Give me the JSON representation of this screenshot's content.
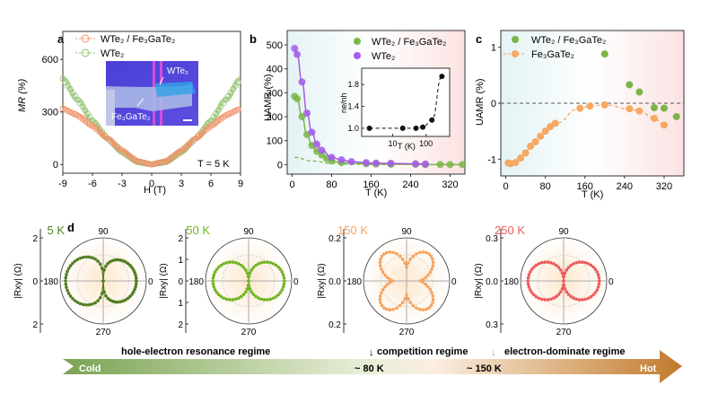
{
  "chart_data": [
    {
      "panel": "a",
      "type": "line",
      "xlabel": "H (T)",
      "ylabel": "MR (%)",
      "xlim": [
        -9,
        9
      ],
      "ylim": [
        -50,
        760
      ],
      "xticks": [
        -9,
        -6,
        -3,
        0,
        3,
        6,
        9
      ],
      "yticks": [
        0,
        300,
        600
      ],
      "annotation": "T = 5 K",
      "inset_labels": [
        "WTe2",
        "Fe3GaTe2"
      ],
      "series": [
        {
          "name": "WTe2 / Fe3GaTe2",
          "color": "#f29068",
          "marker": "open-circle",
          "x": [
            -9,
            -7.5,
            -6,
            -4.5,
            -3,
            -1.5,
            0,
            1.5,
            3,
            4.5,
            6,
            7.5,
            9
          ],
          "y": [
            320,
            280,
            220,
            150,
            80,
            20,
            0,
            20,
            80,
            150,
            220,
            280,
            320
          ]
        },
        {
          "name": "WTe2",
          "color": "#8fc06a",
          "marker": "open-circle",
          "x": [
            -9,
            -7.5,
            -6,
            -4.5,
            -3,
            -1.5,
            0,
            1.5,
            3,
            4.5,
            6,
            7.5,
            9
          ],
          "y": [
            490,
            370,
            250,
            150,
            70,
            15,
            0,
            15,
            70,
            150,
            250,
            370,
            490
          ]
        }
      ]
    },
    {
      "panel": "b",
      "type": "scatter",
      "xlabel": "T (K)",
      "ylabel": "UAMR (%)",
      "xlim": [
        -10,
        350
      ],
      "ylim": [
        -40,
        560
      ],
      "xticks": [
        0,
        80,
        160,
        240,
        320
      ],
      "yticks": [
        0,
        100,
        200,
        300,
        400,
        500
      ],
      "series": [
        {
          "name": "WTe2 / Fe3GaTe2",
          "color": "#7ab648",
          "x": [
            5,
            10,
            20,
            30,
            40,
            50,
            60,
            70,
            80,
            100,
            150,
            170,
            200,
            250,
            270,
            300,
            320,
            345
          ],
          "y": [
            285,
            275,
            200,
            125,
            80,
            55,
            40,
            25,
            15,
            8,
            3,
            2,
            1,
            1,
            0,
            0,
            0,
            0
          ]
        },
        {
          "name": "WTe2",
          "color": "#a55be8",
          "x": [
            5,
            10,
            20,
            30,
            40,
            50,
            60,
            80,
            100,
            120,
            150,
            170,
            200,
            250,
            270
          ],
          "y": [
            485,
            460,
            345,
            215,
            135,
            85,
            60,
            30,
            20,
            12,
            8,
            6,
            5,
            3,
            2
          ]
        }
      ],
      "inset": {
        "xlabel": "T (K)",
        "ylabel": "ne/nh",
        "xscale": "log",
        "xticks": [
          10,
          100
        ],
        "yticks": [
          1.0,
          1.4,
          1.8
        ],
        "x": [
          2,
          20,
          50,
          80,
          150,
          300
        ],
        "y": [
          1.0,
          1.0,
          1.0,
          1.02,
          1.15,
          1.95
        ]
      }
    },
    {
      "panel": "c",
      "type": "scatter",
      "xlabel": "T (K)",
      "ylabel": "UAMR (%)",
      "xlim": [
        -10,
        360
      ],
      "ylim": [
        -1.3,
        1.3
      ],
      "xticks": [
        0,
        80,
        160,
        240,
        320
      ],
      "yticks": [
        -1,
        0,
        1
      ],
      "series": [
        {
          "name": "WTe2 / Fe3GaTe2",
          "color": "#7ab648",
          "x": [
            200,
            250,
            270,
            300,
            320,
            345
          ],
          "y": [
            0.88,
            0.33,
            0.2,
            -0.08,
            -0.09,
            -0.24
          ]
        },
        {
          "name": "Fe3GaTe2",
          "color": "#f7a862",
          "x": [
            5,
            10,
            20,
            30,
            40,
            50,
            60,
            70,
            80,
            90,
            100,
            150,
            170,
            200,
            250,
            270,
            300,
            320
          ],
          "y": [
            -1.07,
            -1.08,
            -1.06,
            -0.98,
            -0.89,
            -0.77,
            -0.69,
            -0.59,
            -0.5,
            -0.42,
            -0.36,
            -0.09,
            -0.05,
            -0.03,
            -0.1,
            -0.14,
            -0.27,
            -0.39
          ]
        }
      ]
    },
    {
      "panel": "d",
      "type": "polar",
      "ylabel": "|Rxy| (Ω)",
      "angle_labels": [
        "90",
        "180",
        "0",
        "270"
      ],
      "plots": [
        {
          "temperature": "5 K",
          "color": "#4f7d1f",
          "yticks": [
            "2",
            "0",
            "2"
          ],
          "shape": "asymmetric-butterfly"
        },
        {
          "temperature": "50 K",
          "color": "#72b523",
          "yticks": [
            "2",
            "1",
            "0",
            "1",
            "2"
          ],
          "shape": "two-lobe"
        },
        {
          "temperature": "150 K",
          "color": "#f5a462",
          "yticks": [
            "0.2",
            "0.0",
            "0.2"
          ],
          "shape": "four-lobe"
        },
        {
          "temperature": "250 K",
          "color": "#ef5b5b",
          "yticks": [
            "0.3",
            "0.0",
            "0.3"
          ],
          "shape": "two-lobe"
        }
      ]
    }
  ],
  "panel_labels": [
    "a",
    "b",
    "c",
    "d"
  ],
  "legend_a": [
    "WTe₂ / Fe₃GaTe₂",
    "WTe₂"
  ],
  "legend_b": [
    "WTe₂ / Fe₃GaTe₂",
    "WTe₂"
  ],
  "legend_c": [
    "WTe₂ / Fe₃GaTe₂",
    "Fe₃GaTe₂"
  ],
  "timeline": {
    "cold": "Cold",
    "hot": "Hot",
    "regimes": [
      "hole-electron resonance regime",
      "competition regime",
      "electron-dominate regime"
    ],
    "markers": [
      "~ 80 K",
      "~ 150 K"
    ]
  }
}
